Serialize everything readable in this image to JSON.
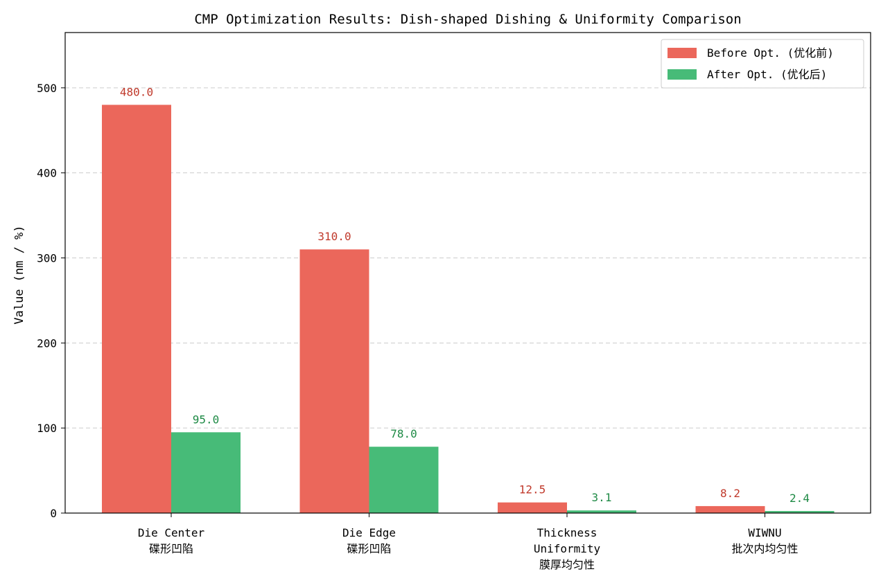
{
  "chart_data": {
    "type": "bar",
    "title": "CMP Optimization Results: Dish-shaped Dishing & Uniformity Comparison",
    "xlabel": "",
    "ylabel": "Value (nm / %)",
    "ylim": [
      0,
      565
    ],
    "yticks": [
      0,
      100,
      200,
      300,
      400,
      500
    ],
    "grid": "y-dashed",
    "legend_position": "top-right",
    "categories": [
      [
        "Die Center",
        "碟形凹陷"
      ],
      [
        "Die Edge",
        "碟形凹陷"
      ],
      [
        "Thickness",
        "Uniformity",
        "膜厚均匀性"
      ],
      [
        "WIWNU",
        "批次内均匀性"
      ]
    ],
    "series": [
      {
        "name": "Before Opt. (优化前)",
        "color": "#eb675b",
        "label_color": "#c0392b",
        "values": [
          480.0,
          310.0,
          12.5,
          8.2
        ],
        "labels": [
          "480.0",
          "310.0",
          "12.5",
          "8.2"
        ]
      },
      {
        "name": "After Opt. (优化后)",
        "color": "#47bb78",
        "label_color": "#1e8a45",
        "values": [
          95.0,
          78.0,
          3.1,
          2.4
        ],
        "labels": [
          "95.0",
          "78.0",
          "3.1",
          "2.4"
        ]
      }
    ]
  }
}
